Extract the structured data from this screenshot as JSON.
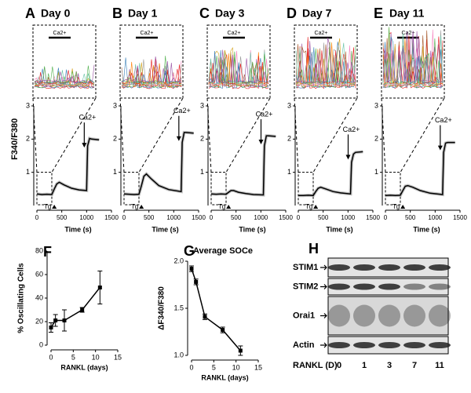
{
  "chart_data": [
    {
      "type": "trace",
      "panel": "A",
      "title": "Day 0",
      "ylabel": "F340/F380",
      "xlabel": "Time (s)",
      "inset_label": "Ca2+",
      "tg_label": "Tg",
      "ca_label": "Ca2+",
      "tg_add": 350,
      "ca_add": 1000,
      "x": [
        0,
        100,
        200,
        300,
        350,
        400,
        450,
        550,
        700,
        850,
        1000,
        1020,
        1060,
        1100,
        1250
      ],
      "values": [
        0.35,
        0.33,
        0.34,
        0.33,
        0.5,
        0.65,
        0.7,
        0.62,
        0.52,
        0.47,
        0.45,
        1.8,
        2.02,
        2.0,
        1.98
      ],
      "xlim": [
        0,
        1500
      ],
      "xticks": [
        0,
        500,
        1000,
        1500
      ],
      "ylim": [
        0,
        3
      ],
      "yticks": [
        1,
        2,
        3
      ]
    },
    {
      "type": "trace",
      "panel": "B",
      "title": "Day 1",
      "xlabel": "Time (s)",
      "inset_label": "Ca2+",
      "tg_label": "Tg",
      "ca_label": "Ca2+",
      "tg_add": 350,
      "ca_add": 1150,
      "x": [
        0,
        100,
        200,
        300,
        350,
        400,
        450,
        550,
        700,
        900,
        1150,
        1170,
        1210,
        1250,
        1400
      ],
      "values": [
        0.35,
        0.34,
        0.33,
        0.34,
        0.6,
        0.88,
        0.95,
        0.8,
        0.6,
        0.48,
        0.42,
        1.9,
        2.2,
        2.2,
        2.18
      ],
      "xlim": [
        0,
        1500
      ],
      "xticks": [
        0,
        500,
        1000,
        1500
      ],
      "ylim": [
        0,
        3
      ],
      "yticks": [
        1,
        2,
        3
      ]
    },
    {
      "type": "trace",
      "panel": "C",
      "title": "Day 3",
      "xlabel": "Time (s)",
      "inset_label": "Ca2+",
      "tg_label": "Tg",
      "ca_label": "Ca2+",
      "tg_add": 350,
      "ca_add": 1050,
      "x": [
        0,
        100,
        200,
        300,
        350,
        400,
        450,
        550,
        700,
        850,
        1050,
        1070,
        1110,
        1150,
        1300
      ],
      "values": [
        0.35,
        0.34,
        0.35,
        0.34,
        0.4,
        0.45,
        0.45,
        0.4,
        0.36,
        0.33,
        0.32,
        1.8,
        2.1,
        2.1,
        2.08
      ],
      "xlim": [
        0,
        1500
      ],
      "xticks": [
        0,
        500,
        1000,
        1500
      ],
      "ylim": [
        0,
        3
      ],
      "yticks": [
        1,
        2,
        3
      ]
    },
    {
      "type": "trace",
      "panel": "D",
      "title": "Day 7",
      "xlabel": "Time (s)",
      "inset_label": "Ca2+",
      "tg_label": "Tg",
      "ca_label": "Ca2+",
      "tg_add": 350,
      "ca_add": 1050,
      "x": [
        0,
        100,
        200,
        300,
        350,
        400,
        450,
        550,
        700,
        850,
        1050,
        1070,
        1110,
        1150,
        1300
      ],
      "values": [
        0.3,
        0.3,
        0.31,
        0.3,
        0.42,
        0.52,
        0.55,
        0.5,
        0.42,
        0.38,
        0.35,
        1.3,
        1.55,
        1.6,
        1.62
      ],
      "xlim": [
        0,
        1500
      ],
      "xticks": [
        0,
        500,
        1000,
        1500
      ],
      "ylim": [
        0,
        3
      ],
      "yticks": [
        1,
        2,
        3
      ]
    },
    {
      "type": "trace",
      "panel": "E",
      "title": "Day 11",
      "xlabel": "Time (s)",
      "inset_label": "Ca2+",
      "tg_label": "Tg",
      "ca_label": "Ca2+",
      "tg_add": 350,
      "ca_add": 1150,
      "x": [
        0,
        100,
        200,
        300,
        350,
        400,
        450,
        550,
        700,
        900,
        1150,
        1170,
        1210,
        1250,
        1400
      ],
      "values": [
        0.3,
        0.31,
        0.3,
        0.31,
        0.45,
        0.58,
        0.6,
        0.55,
        0.45,
        0.37,
        0.33,
        1.6,
        1.88,
        1.9,
        1.9
      ],
      "xlim": [
        0,
        1500
      ],
      "xticks": [
        0,
        500,
        1000,
        1500
      ],
      "ylim": [
        0,
        3
      ],
      "yticks": [
        1,
        2,
        3
      ]
    },
    {
      "type": "errorline",
      "panel": "F",
      "xlabel": "RANKL (days)",
      "ylabel": "% Oscillating Cells",
      "x": [
        0,
        1,
        3,
        7,
        11
      ],
      "values": [
        15,
        21,
        21,
        30,
        49
      ],
      "errors": [
        4,
        5,
        9,
        2,
        14
      ],
      "xlim": [
        0,
        15
      ],
      "xticks": [
        0,
        5,
        10,
        15
      ],
      "ylim": [
        0,
        80
      ],
      "yticks": [
        0,
        20,
        40,
        60,
        80
      ]
    },
    {
      "type": "errorline",
      "panel": "G",
      "title": "Average SOCe",
      "xlabel": "RANKL (days)",
      "ylabel": "ΔF340/F380",
      "x": [
        0,
        1,
        3,
        7,
        11
      ],
      "values": [
        1.92,
        1.78,
        1.41,
        1.27,
        1.05
      ],
      "errors": [
        0.03,
        0.03,
        0.03,
        0.03,
        0.05
      ],
      "xlim": [
        0,
        15
      ],
      "xticks": [
        0,
        5,
        10,
        15
      ],
      "ylim": [
        1,
        2
      ],
      "yticks": [
        {
          "value": 1,
          "label": "1.0"
        },
        1.5,
        {
          "value": 2,
          "label": "2.0"
        }
      ]
    }
  ],
  "blot": {
    "panel": "H",
    "rows": [
      "STIM1",
      "STIM2",
      "Orai1",
      "Actin"
    ],
    "axis_label": "RANKL (D)",
    "lanes": [
      "0",
      "1",
      "3",
      "7",
      "11"
    ]
  }
}
